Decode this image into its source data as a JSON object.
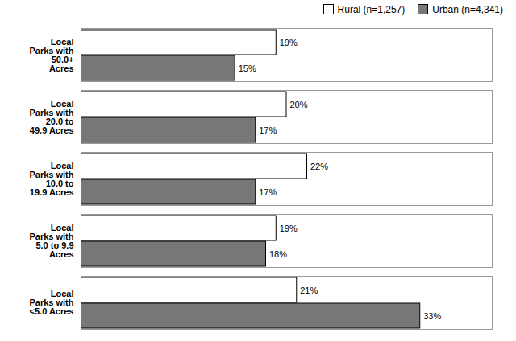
{
  "chart_data": {
    "type": "bar",
    "orientation": "horizontal",
    "categories": [
      "Local\nParks with\n50.0+\nAcres",
      "Local\nParks with\n20.0 to\n49.9 Acres",
      "Local\nParks with\n10.0 to\n19.9 Acres",
      "Local\nParks with\n5.0 to 9.9\nAcres",
      "Local\nParks with\n<5.0 Acres"
    ],
    "series": [
      {
        "name": "Rural (n=1,257)",
        "color": "#ffffff",
        "values": [
          19,
          20,
          22,
          19,
          21
        ],
        "value_labels": [
          "19%",
          "20%",
          "22%",
          "19%",
          "21%"
        ]
      },
      {
        "name": "Urban (n=4,341)",
        "color": "#777777",
        "values": [
          15,
          17,
          17,
          18,
          33
        ],
        "value_labels": [
          "15%",
          "17%",
          "17%",
          "18%",
          "33%"
        ]
      }
    ],
    "xlim": [
      0,
      40
    ],
    "xticks": [],
    "grid": false,
    "legend": "upper right",
    "data_labels": true,
    "tick_labels": "y"
  }
}
